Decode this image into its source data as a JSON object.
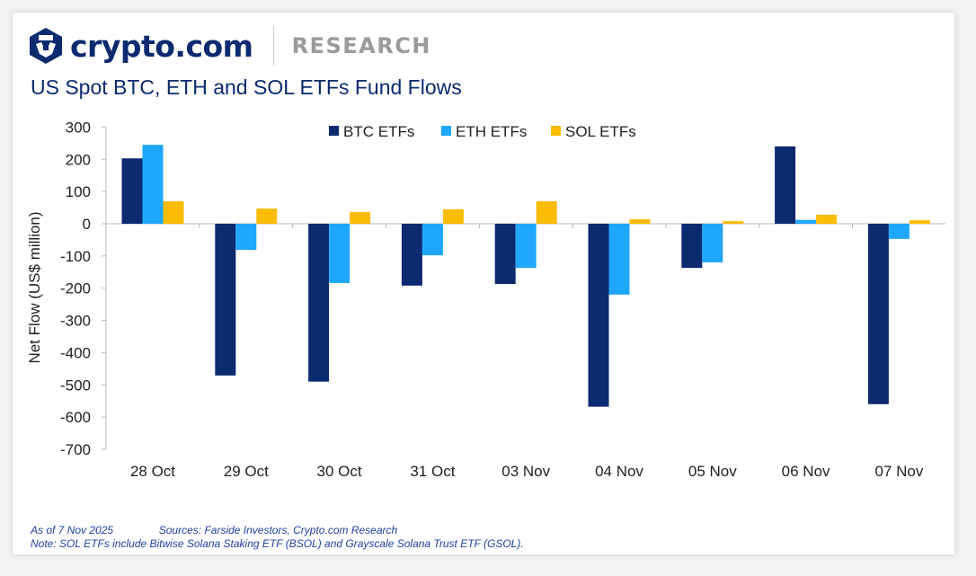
{
  "header": {
    "brand": "crypto.com",
    "section": "RESEARCH",
    "title": "US Spot BTC, ETH and SOL ETFs Fund Flows"
  },
  "chart_data": {
    "type": "bar",
    "title": "US Spot BTC, ETH and SOL ETFs Fund Flows",
    "xlabel": "",
    "ylabel": "Net Flow (US$ million)",
    "ylim": [
      -700,
      300
    ],
    "yticks": [
      300,
      200,
      100,
      0,
      -100,
      -200,
      -300,
      -400,
      -500,
      -600,
      -700
    ],
    "legend_position": "top-center",
    "categories": [
      "28 Oct",
      "29 Oct",
      "30 Oct",
      "31 Oct",
      "03 Nov",
      "04 Nov",
      "05 Nov",
      "06 Nov",
      "07 Nov"
    ],
    "series": [
      {
        "name": "BTC ETFs",
        "color": "#0b2a6f",
        "values": [
          203,
          -471,
          -490,
          -192,
          -187,
          -568,
          -137,
          240,
          -560
        ]
      },
      {
        "name": "ETH ETFs",
        "color": "#1ea7fd",
        "values": [
          245,
          -81,
          -184,
          -98,
          -137,
          -220,
          -120,
          12,
          -47
        ]
      },
      {
        "name": "SOL ETFs",
        "color": "#fbbc05",
        "values": [
          70,
          47,
          36,
          45,
          70,
          14,
          8,
          28,
          11
        ]
      }
    ]
  },
  "footer": {
    "as_of": "As of 7 Nov 2025",
    "sources": "Sources: Farside Investors, Crypto.com Research",
    "note": "Note: SOL ETFs include Bitwise Solana Staking ETF (BSOL) and Grayscale Solana Trust ETF (GSOL)."
  }
}
